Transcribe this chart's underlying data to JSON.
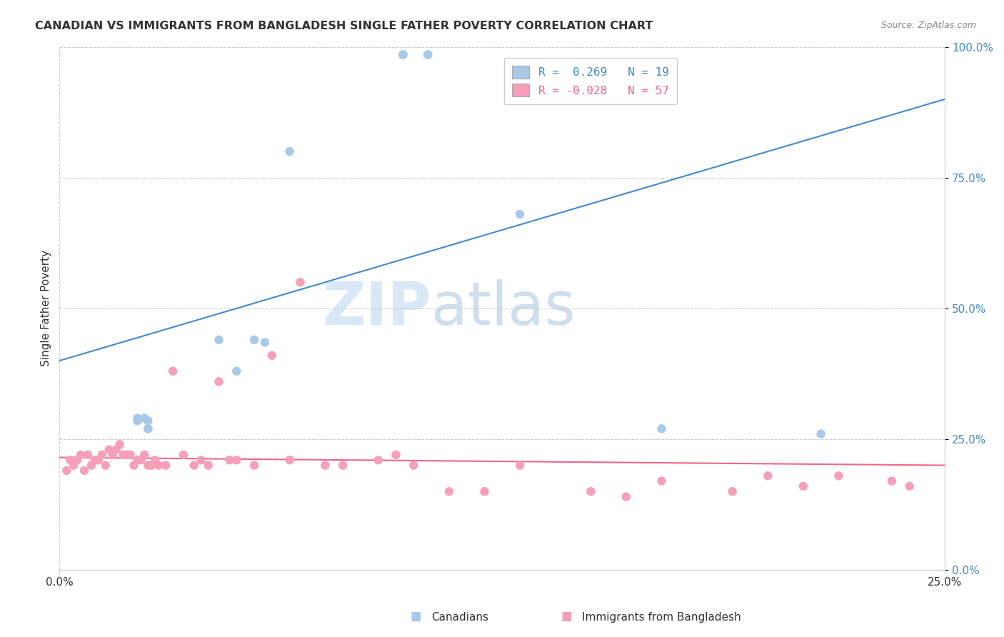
{
  "title": "CANADIAN VS IMMIGRANTS FROM BANGLADESH SINGLE FATHER POVERTY CORRELATION CHART",
  "source": "Source: ZipAtlas.com",
  "ylabel": "Single Father Poverty",
  "canadian_color": "#a8c8e8",
  "bangladesh_color": "#f5a0b8",
  "trendline_canadian_color": "#4488cc",
  "trendline_bangladesh_color": "#ee6688",
  "watermark_color": "#ddeeff",
  "right_tick_color": "#4488cc",
  "grid_color": "#cccccc",
  "title_color": "#333333",
  "source_color": "#888888",
  "legend_R1": "R =  0.269",
  "legend_N1": "N = 19",
  "legend_R2": "R = -0.028",
  "legend_N2": "N = 57",
  "xlim": [
    0,
    0.25
  ],
  "ylim": [
    0,
    1.0
  ],
  "ytick_vals": [
    0.0,
    0.25,
    0.5,
    0.75,
    1.0
  ],
  "ytick_labels": [
    "0.0%",
    "25.0%",
    "50.0%",
    "75.0%",
    "100.0%"
  ],
  "xtick_vals": [
    0.0,
    0.25
  ],
  "xtick_labels": [
    "0.0%",
    "25.0%"
  ],
  "canadian_x": [
    0.097,
    0.097,
    0.097,
    0.104,
    0.104,
    0.065,
    0.13,
    0.045,
    0.055,
    0.058,
    0.05,
    0.022,
    0.022,
    0.024,
    0.025,
    0.025,
    0.025,
    0.17,
    0.215
  ],
  "canadian_y": [
    0.985,
    0.985,
    0.985,
    0.985,
    0.985,
    0.8,
    0.68,
    0.44,
    0.44,
    0.435,
    0.38,
    0.29,
    0.285,
    0.29,
    0.285,
    0.27,
    0.27,
    0.27,
    0.26
  ],
  "bangladesh_x": [
    0.002,
    0.003,
    0.004,
    0.005,
    0.006,
    0.007,
    0.008,
    0.009,
    0.01,
    0.011,
    0.012,
    0.013,
    0.014,
    0.015,
    0.016,
    0.017,
    0.018,
    0.019,
    0.02,
    0.021,
    0.022,
    0.023,
    0.024,
    0.025,
    0.026,
    0.027,
    0.028,
    0.03,
    0.032,
    0.035,
    0.038,
    0.04,
    0.042,
    0.045,
    0.048,
    0.05,
    0.055,
    0.06,
    0.065,
    0.068,
    0.075,
    0.08,
    0.09,
    0.095,
    0.1,
    0.11,
    0.12,
    0.13,
    0.15,
    0.16,
    0.17,
    0.19,
    0.2,
    0.21,
    0.22,
    0.235,
    0.24
  ],
  "bangladesh_y": [
    0.19,
    0.21,
    0.2,
    0.21,
    0.22,
    0.19,
    0.22,
    0.2,
    0.21,
    0.21,
    0.22,
    0.2,
    0.23,
    0.22,
    0.23,
    0.24,
    0.22,
    0.22,
    0.22,
    0.2,
    0.21,
    0.21,
    0.22,
    0.2,
    0.2,
    0.21,
    0.2,
    0.2,
    0.38,
    0.22,
    0.2,
    0.21,
    0.2,
    0.36,
    0.21,
    0.21,
    0.2,
    0.41,
    0.21,
    0.55,
    0.2,
    0.2,
    0.21,
    0.22,
    0.2,
    0.15,
    0.15,
    0.2,
    0.15,
    0.14,
    0.17,
    0.15,
    0.18,
    0.16,
    0.18,
    0.17,
    0.16
  ]
}
